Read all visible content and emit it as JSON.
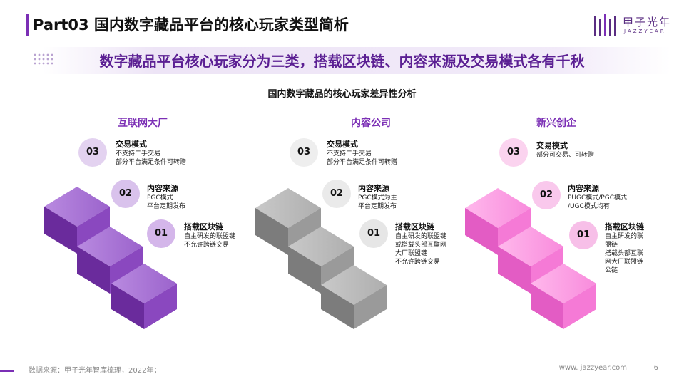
{
  "header": {
    "title": "Part03 国内数字藏品平台的核心玩家类型简析",
    "subtitle": "数字藏品平台核心玩家分为三类，搭载区块链、内容来源及交易模式各有千秋"
  },
  "brand": {
    "name": "甲子光年",
    "sub": "JAZZYEAR",
    "color": "#5a2d82"
  },
  "chart_title": "国内数字藏品的核心玩家差异性分析",
  "columns": [
    {
      "title": "互联网大厂",
      "color": "#7b2fb5",
      "steps": [
        {
          "num": "03",
          "heading": "交易模式",
          "lines": [
            "不支持二手交易",
            "部分平台满足条件可转赠"
          ]
        },
        {
          "num": "02",
          "heading": "内容来源",
          "lines": [
            "PGC模式",
            "平台定期发布"
          ]
        },
        {
          "num": "01",
          "heading": "搭载区块链",
          "lines": [
            "自主研发的联盟链",
            "不允许跨链交易"
          ]
        }
      ]
    },
    {
      "title": "内容公司",
      "color": "#7b2fb5",
      "steps": [
        {
          "num": "03",
          "heading": "交易模式",
          "lines": [
            "不支持二手交易",
            "部分平台满足条件可转赠"
          ]
        },
        {
          "num": "02",
          "heading": "内容来源",
          "lines": [
            "PGC模式为主",
            "平台定期发布"
          ]
        },
        {
          "num": "01",
          "heading": "搭载区块链",
          "lines": [
            "自主研发的联盟链",
            "或搭载头部互联网",
            "大厂联盟链",
            "不允许跨链交易"
          ]
        }
      ]
    },
    {
      "title": "新兴创企",
      "color": "#7b2fb5",
      "steps": [
        {
          "num": "03",
          "heading": "交易模式",
          "lines": [
            "部分可交易、可转赠"
          ]
        },
        {
          "num": "02",
          "heading": "内容来源",
          "lines": [
            "PUGC模式/PGC模式",
            "/UGC模式均有"
          ]
        },
        {
          "num": "01",
          "heading": "搭载区块链",
          "lines": [
            "自主研发的联",
            "盟链",
            "搭载头部互联",
            "网大厂联盟链",
            "公链"
          ]
        }
      ]
    }
  ],
  "footer": {
    "source": "数据来源：甲子光年智库梳理，2022年；",
    "website": "www. jazzyear.com",
    "page": "6"
  },
  "colors": {
    "accent": "#7b2fb5",
    "purple_block": "#7d3fb0",
    "gray_block": "#8a8a8a",
    "pink_block": "#ef6fd0"
  }
}
